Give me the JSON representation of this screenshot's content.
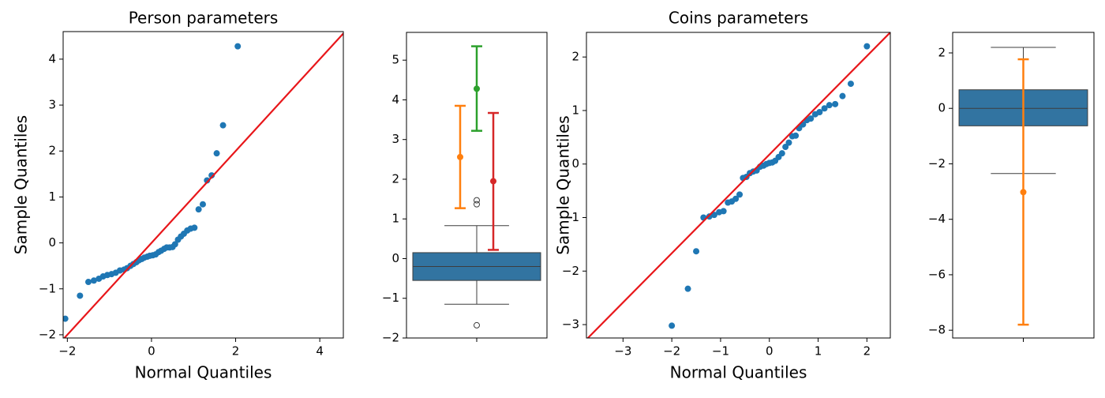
{
  "chart_data": [
    {
      "type": "qq",
      "title": "Person parameters",
      "xlabel": "Normal Quantiles",
      "ylabel": "Sample Quantiles",
      "xlim": [
        -2.1,
        4.56
      ],
      "ylim": [
        -2.07,
        4.6
      ],
      "xticks": [
        {
          "value": -2,
          "label": "−2"
        },
        0,
        2,
        4
      ],
      "yticks": [
        {
          "value": -2,
          "label": "−2"
        },
        {
          "value": -1,
          "label": "−1"
        },
        0,
        1,
        2,
        3,
        4
      ],
      "color": "#1f77b4",
      "line_color": "#e8161a",
      "reference_line": {
        "x": [
          -2.1,
          4.56
        ],
        "y": [
          -2.1,
          4.56
        ]
      },
      "x": [
        -2.05,
        -1.7,
        -1.5,
        -1.37,
        -1.25,
        -1.15,
        -1.05,
        -0.95,
        -0.85,
        -0.75,
        -0.65,
        -0.58,
        -0.5,
        -0.43,
        -0.36,
        -0.3,
        -0.23,
        -0.17,
        -0.1,
        -0.04,
        0.03,
        0.1,
        0.17,
        0.23,
        0.3,
        0.36,
        0.43,
        0.5,
        0.56,
        0.63,
        0.7,
        0.77,
        0.85,
        0.93,
        1.02,
        1.12,
        1.22,
        1.32,
        1.43,
        1.55,
        1.7,
        2.05
      ],
      "values": [
        -1.65,
        -1.15,
        -0.85,
        -0.82,
        -0.78,
        -0.73,
        -0.7,
        -0.68,
        -0.65,
        -0.6,
        -0.58,
        -0.55,
        -0.5,
        -0.46,
        -0.42,
        -0.38,
        -0.35,
        -0.32,
        -0.3,
        -0.28,
        -0.27,
        -0.25,
        -0.2,
        -0.17,
        -0.13,
        -0.1,
        -0.1,
        -0.09,
        -0.03,
        0.07,
        0.14,
        0.2,
        0.27,
        0.31,
        0.33,
        0.73,
        0.84,
        1.36,
        1.47,
        1.95,
        2.56,
        4.28
      ]
    },
    {
      "type": "box",
      "ylim": [
        -2.0,
        5.7
      ],
      "yticks": [
        {
          "value": -2,
          "label": "−2"
        },
        {
          "value": -1,
          "label": "−1"
        },
        0,
        1,
        2,
        3,
        4,
        5
      ],
      "categories": [
        null
      ],
      "color": "#3274a1",
      "box": {
        "q1": -0.55,
        "median": -0.2,
        "q3": 0.15,
        "whisker_low": -1.15,
        "whisker_high": 0.83,
        "fliers": [
          -1.68,
          1.37,
          1.47
        ]
      },
      "errorbars": [
        {
          "color": "#ff7f0e",
          "value": 2.56,
          "lower": 1.27,
          "upper": 3.85
        },
        {
          "color": "#2ca02c",
          "value": 4.28,
          "lower": 3.22,
          "upper": 5.35
        },
        {
          "color": "#d62728",
          "value": 1.95,
          "lower": 0.22,
          "upper": 3.67
        }
      ]
    },
    {
      "type": "qq",
      "title": "Coins parameters",
      "xlabel": "Normal Quantiles",
      "ylabel": "Sample Quantiles",
      "xlim": [
        -3.75,
        2.48
      ],
      "ylim": [
        -3.25,
        2.46
      ],
      "xticks": [
        {
          "value": -3,
          "label": "−3"
        },
        {
          "value": -2,
          "label": "−2"
        },
        {
          "value": -1,
          "label": "−1"
        },
        0,
        1,
        2
      ],
      "yticks": [
        {
          "value": -3,
          "label": "−3"
        },
        {
          "value": -2,
          "label": "−2"
        },
        {
          "value": -1,
          "label": "−1"
        },
        0,
        1,
        2
      ],
      "color": "#1f77b4",
      "line_color": "#e8161a",
      "reference_line": {
        "x": [
          -3.72,
          2.48
        ],
        "y": [
          -3.25,
          2.46
        ]
      },
      "x": [
        -2.0,
        -1.67,
        -1.5,
        -1.35,
        -1.23,
        -1.13,
        -1.03,
        -0.94,
        -0.85,
        -0.77,
        -0.69,
        -0.61,
        -0.54,
        -0.47,
        -0.4,
        -0.33,
        -0.26,
        -0.19,
        -0.12,
        -0.06,
        0.0,
        0.06,
        0.12,
        0.19,
        0.26,
        0.33,
        0.4,
        0.47,
        0.54,
        0.61,
        0.69,
        0.77,
        0.85,
        0.94,
        1.03,
        1.13,
        1.23,
        1.35,
        1.5,
        1.67,
        2.0
      ],
      "values": [
        -3.02,
        -2.33,
        -1.63,
        -1.0,
        -0.98,
        -0.95,
        -0.9,
        -0.88,
        -0.72,
        -0.7,
        -0.65,
        -0.57,
        -0.26,
        -0.24,
        -0.17,
        -0.14,
        -0.12,
        -0.05,
        -0.03,
        0.0,
        0.02,
        0.03,
        0.06,
        0.13,
        0.2,
        0.32,
        0.4,
        0.52,
        0.53,
        0.67,
        0.74,
        0.82,
        0.85,
        0.93,
        0.97,
        1.04,
        1.1,
        1.12,
        1.27,
        1.5,
        2.2
      ]
    },
    {
      "type": "box",
      "ylim": [
        -8.28,
        2.74
      ],
      "yticks": [
        {
          "value": -8,
          "label": "−8"
        },
        {
          "value": -6,
          "label": "−6"
        },
        {
          "value": -4,
          "label": "−4"
        },
        {
          "value": -2,
          "label": "−2"
        },
        0,
        2
      ],
      "categories": [
        null
      ],
      "color": "#3274a1",
      "box": {
        "q1": -0.63,
        "median": 0.0,
        "q3": 0.67,
        "whisker_low": -2.35,
        "whisker_high": 2.2,
        "fliers": []
      },
      "errorbars": [
        {
          "color": "#ff7f0e",
          "value": -3.02,
          "lower": -7.8,
          "upper": 1.77
        }
      ]
    }
  ]
}
